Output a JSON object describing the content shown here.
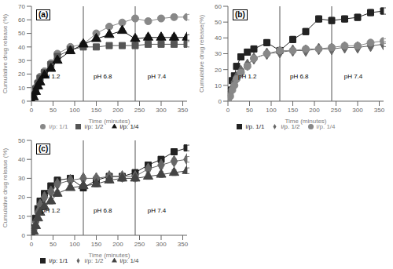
{
  "chart_data": [
    {
      "type": "line",
      "title": "(a)",
      "xlabel": "Time (minutes)",
      "ylabel": "Cumulative drug release (%)",
      "xlim": [
        0,
        360
      ],
      "xticks": [
        0,
        50,
        100,
        150,
        200,
        250,
        300,
        350
      ],
      "ylim": [
        0,
        70
      ],
      "yticks": [
        0,
        10,
        20,
        30,
        40,
        50,
        60,
        70
      ],
      "grid": false,
      "legend": "bottom",
      "vlines": [
        120,
        240
      ],
      "annotations": [
        {
          "text": "pH 1.2",
          "x": 45,
          "y": 14
        },
        {
          "text": "pH 6.8",
          "x": 165,
          "y": 14
        },
        {
          "text": "pH 7.4",
          "x": 290,
          "y": 14
        }
      ],
      "x": [
        0,
        5,
        10,
        15,
        20,
        30,
        45,
        60,
        90,
        120,
        150,
        180,
        210,
        240,
        270,
        300,
        330,
        360
      ],
      "series": [
        {
          "name": "i/p: 1/1",
          "color": "#888888",
          "marker": "circle",
          "values": [
            0,
            5,
            10,
            14,
            18,
            22,
            28,
            35,
            40,
            42,
            50,
            55,
            58,
            61,
            59,
            61,
            62,
            62
          ],
          "errors": [
            0,
            0.5,
            0.8,
            1,
            1,
            1.2,
            1.5,
            1.5,
            1.2,
            1.5,
            1.5,
            1.5,
            1.5,
            2,
            2,
            2,
            2,
            2
          ]
        },
        {
          "name": "i/p: 1/2",
          "color": "#555555",
          "marker": "square",
          "values": [
            0,
            4,
            9,
            13,
            17,
            21,
            27,
            33,
            38,
            40,
            40,
            41,
            41,
            41,
            42,
            42,
            42,
            42
          ],
          "errors": [
            0,
            0.5,
            0.8,
            1,
            1,
            1.2,
            1.5,
            1.5,
            1.2,
            1.5,
            1.5,
            1.5,
            1.5,
            2,
            2,
            2,
            2,
            2
          ]
        },
        {
          "name": "i/p: 1/4",
          "color": "#111111",
          "marker": "triangle",
          "values": [
            0,
            3,
            7,
            11,
            14,
            19,
            24,
            30,
            37,
            42,
            46,
            49,
            52,
            46,
            47,
            47,
            47,
            47
          ],
          "errors": [
            0,
            0.5,
            0.8,
            1,
            1,
            1.2,
            1.5,
            1.5,
            1.2,
            1.5,
            1.5,
            1.5,
            1.5,
            2,
            2,
            2,
            2,
            2
          ]
        }
      ]
    },
    {
      "type": "line",
      "title": "(b)",
      "xlabel": "Time (minutes)",
      "ylabel": "Cumulative drug release(%)",
      "xlim": [
        0,
        360
      ],
      "xticks": [
        0,
        50,
        100,
        150,
        200,
        250,
        300,
        350
      ],
      "ylim": [
        0,
        60
      ],
      "yticks": [
        0,
        10,
        20,
        30,
        40,
        50,
        60
      ],
      "grid": false,
      "legend": "bottom",
      "vlines": [
        120,
        240
      ],
      "annotations": [
        {
          "text": "pH 1.2",
          "x": 45,
          "y": 12
        },
        {
          "text": "pH 6.8",
          "x": 165,
          "y": 12
        },
        {
          "text": "pH 7.4",
          "x": 290,
          "y": 12
        }
      ],
      "x": [
        0,
        5,
        10,
        15,
        20,
        30,
        45,
        60,
        90,
        120,
        150,
        180,
        210,
        240,
        270,
        300,
        330,
        360
      ],
      "series": [
        {
          "name": "i/p. 1/1",
          "color": "#222222",
          "marker": "square",
          "values": [
            0,
            7,
            13,
            16,
            22,
            28,
            31,
            33,
            37,
            32,
            39,
            44,
            52,
            51,
            52,
            53,
            56,
            57
          ],
          "errors": [
            0,
            1,
            1.5,
            1.5,
            1.5,
            2,
            2,
            2,
            2,
            2,
            2,
            2,
            2,
            2,
            2,
            2,
            2,
            2
          ]
        },
        {
          "name": "i/p. 1/2",
          "color": "#666666",
          "marker": "diamond",
          "values": [
            0,
            4,
            8,
            12,
            15,
            19,
            23,
            27,
            30,
            31,
            32,
            32,
            33,
            33,
            34,
            34,
            35,
            36
          ],
          "errors": [
            0,
            0.5,
            0.8,
            1,
            1,
            1.2,
            1.5,
            1.5,
            1.2,
            1.5,
            1.5,
            1.5,
            1.5,
            1.5,
            1.5,
            1.5,
            1.5,
            1.5
          ]
        },
        {
          "name": "i/p. 1/4",
          "color": "#888888",
          "marker": "circle",
          "values": [
            0,
            3,
            7,
            10,
            14,
            18,
            22,
            27,
            30,
            32,
            32,
            33,
            33,
            34,
            35,
            35,
            37,
            38
          ],
          "errors": [
            0,
            0.5,
            0.8,
            1,
            1,
            1.2,
            1.5,
            1.5,
            1.2,
            1.5,
            1.5,
            1.5,
            1.5,
            1.5,
            1.5,
            1.5,
            1.5,
            1.5
          ]
        }
      ]
    },
    {
      "type": "line",
      "title": "(c)",
      "xlabel": "Time (minutes)",
      "ylabel": "Cumulative drug release (%)",
      "xlim": [
        0,
        360
      ],
      "xticks": [
        0,
        50,
        100,
        150,
        200,
        250,
        300,
        350
      ],
      "ylim": [
        0,
        50
      ],
      "yticks": [
        0,
        10,
        20,
        30,
        40,
        50
      ],
      "grid": false,
      "legend": "bottom",
      "vlines": [
        120,
        240
      ],
      "annotations": [
        {
          "text": "pH 1.2",
          "x": 45,
          "y": 10
        },
        {
          "text": "pH 6.8",
          "x": 165,
          "y": 10
        },
        {
          "text": "pH 7.4",
          "x": 290,
          "y": 10
        }
      ],
      "x": [
        0,
        5,
        10,
        15,
        20,
        30,
        45,
        60,
        90,
        120,
        150,
        180,
        210,
        240,
        270,
        300,
        330,
        360
      ],
      "series": [
        {
          "name": "i/p: 1/1",
          "color": "#222222",
          "marker": "square",
          "values": [
            0,
            4,
            9,
            14,
            18,
            22,
            26,
            29,
            30,
            25,
            29,
            31,
            31,
            33,
            37,
            40,
            44,
            46
          ],
          "errors": [
            0,
            0.5,
            0.8,
            1,
            1,
            1.2,
            1.5,
            1.5,
            1.2,
            1.5,
            1.5,
            1.5,
            1.5,
            1.5,
            1.5,
            1.5,
            1.5,
            1.5
          ]
        },
        {
          "name": "i/p: 1/2",
          "color": "#666666",
          "marker": "diamond",
          "values": [
            0,
            3,
            7,
            12,
            16,
            20,
            23,
            27,
            29,
            30,
            30,
            31,
            31,
            31,
            35,
            37,
            39,
            40
          ],
          "errors": [
            0,
            0.5,
            0.8,
            1,
            1,
            1.2,
            1.5,
            1.5,
            1.2,
            1.5,
            1.5,
            1.5,
            1.5,
            1.5,
            1.5,
            1.5,
            1.5,
            1.5
          ]
        },
        {
          "name": "i/p: 1/4",
          "color": "#444444",
          "marker": "triangle",
          "values": [
            0,
            2,
            5,
            9,
            12,
            15,
            18,
            22,
            25,
            26,
            27,
            29,
            30,
            30,
            31,
            32,
            33,
            34
          ],
          "errors": [
            0,
            0.5,
            0.8,
            1,
            1,
            1.2,
            1.5,
            1.5,
            1.2,
            1.5,
            1.5,
            1.5,
            1.5,
            1.5,
            1.5,
            1.5,
            1.5,
            1.5
          ]
        }
      ]
    }
  ]
}
